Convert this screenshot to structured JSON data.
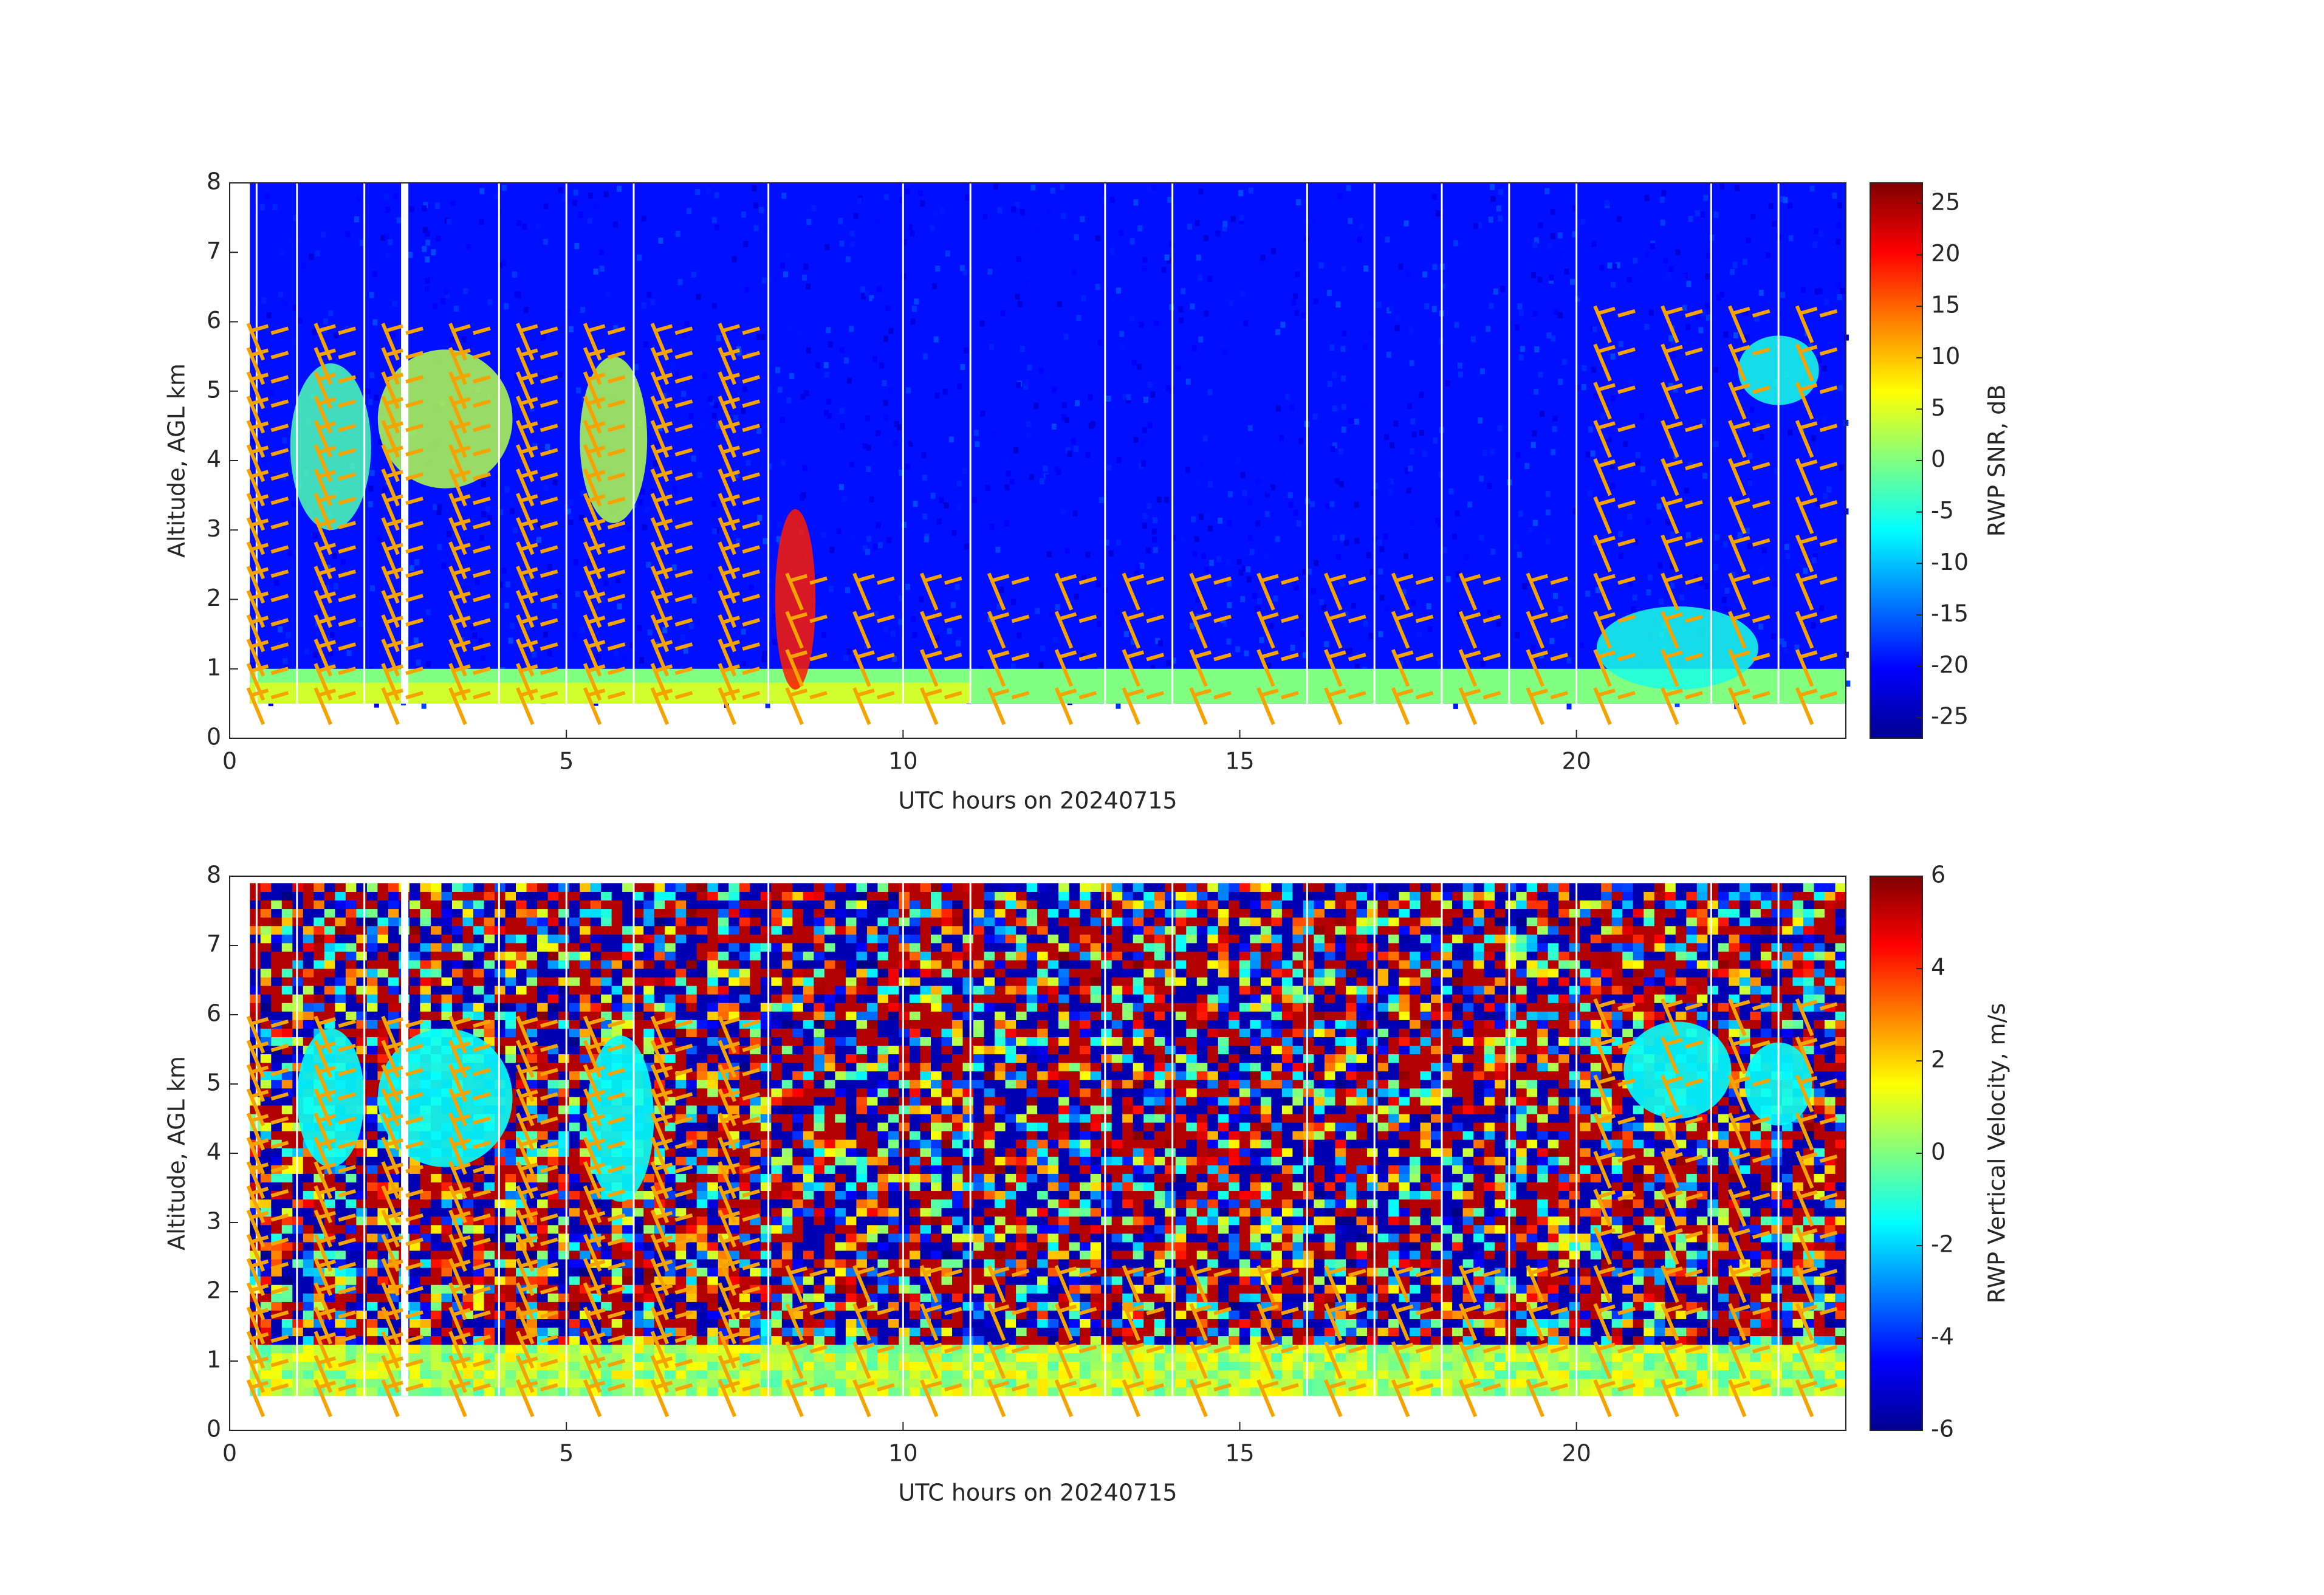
{
  "chart_data": [
    {
      "type": "heatmap",
      "xlabel": "UTC hours on 20240715",
      "ylabel": "Altitude, AGL km",
      "xlim": [
        0,
        24
      ],
      "xticks": [
        0,
        5,
        10,
        15,
        20
      ],
      "ylim": [
        0,
        8
      ],
      "yticks": [
        0,
        1,
        2,
        3,
        4,
        5,
        6,
        7,
        8
      ],
      "colormap": "jet",
      "colorbar_label": "RWP SNR, dB",
      "clim": [
        -27,
        27
      ],
      "cticks": [
        -25,
        -20,
        -15,
        -10,
        -5,
        0,
        5,
        10,
        15,
        20,
        25
      ]
    },
    {
      "type": "heatmap",
      "xlabel": "UTC hours on 20240715",
      "ylabel": "Altitude, AGL km",
      "xlim": [
        0,
        24
      ],
      "xticks": [
        0,
        5,
        10,
        15,
        20
      ],
      "ylim": [
        0,
        8
      ],
      "yticks": [
        0,
        1,
        2,
        3,
        4,
        5,
        6,
        7,
        8
      ],
      "colormap": "jet",
      "colorbar_label": "RWP Vertical Velocity, m/s",
      "clim": [
        -6,
        6
      ],
      "cticks": [
        -6,
        -4,
        -2,
        0,
        2,
        4,
        6
      ]
    }
  ]
}
